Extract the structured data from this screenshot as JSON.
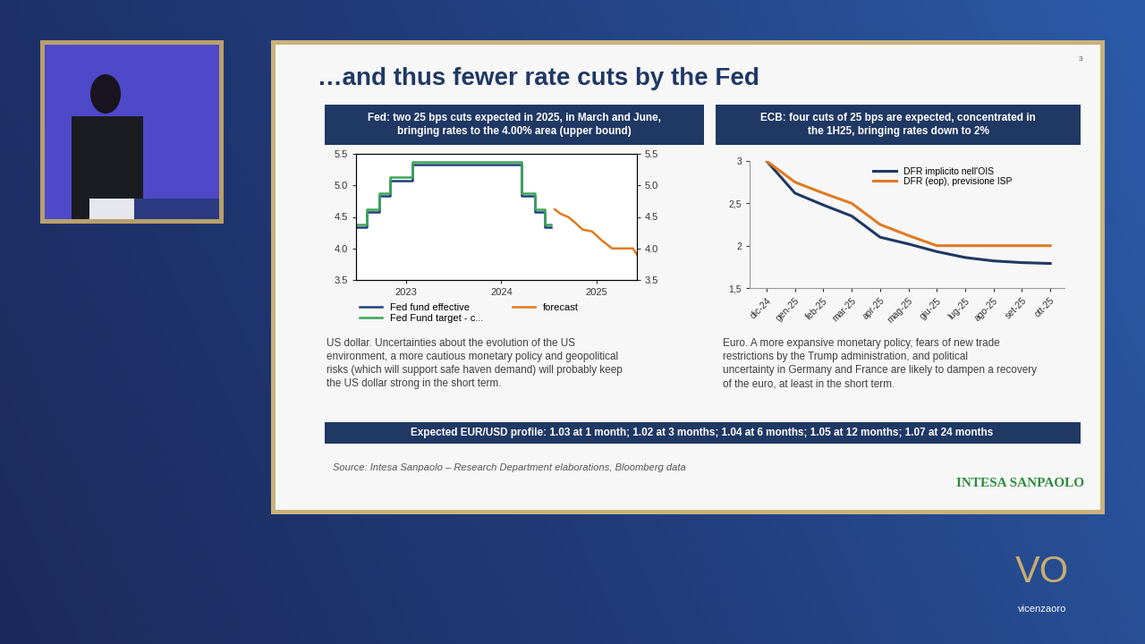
{
  "slide": {
    "title": "…and thus fewer rate cuts by the Fed",
    "page": "3",
    "left_header": "Fed: two 25 bps cuts expected in 2025, in March and June, bringing rates to the 4.00% area (upper bound)",
    "right_header": "ECB: four cuts of 25 bps are expected, concentrated in the 1H25, bringing rates down to 2%",
    "left_text": "US dollar. Uncertainties about the evolution of the US environment, a more cautious monetary policy and geopolitical risks (which will support safe haven demand) will probably keep the US dollar strong in the short term.",
    "right_text": "Euro. A more expansive monetary policy, fears of new trade restrictions by the Trump administration, and political uncertainty in Germany and France are likely to dampen a recovery of the euro, at least in the short term.",
    "footer_bar": "Expected EUR/USD profile: 1.03 at 1 month; 1.02 at 3 months; 1.04 at 6 months; 1.05 at 12 months; 1.07 at 24 months",
    "source": "Source: Intesa Sanpaolo – Research Department elaborations, Bloomberg data",
    "logo": "INTESA SANPAOLO",
    "event_logo": "VO",
    "event_name": "vicenzaoro"
  },
  "chart_data": [
    {
      "type": "line",
      "xlim": [
        2022.98,
        2025.92
      ],
      "xticks": [
        {
          "value": 2023.5,
          "label": "2023"
        },
        {
          "value": 2024.5,
          "label": "2024"
        },
        {
          "value": 2025.5,
          "label": "2025"
        }
      ],
      "ylim": [
        3.5,
        5.5
      ],
      "yticks": [
        3.5,
        {
          "value": 4,
          "label": "4.0"
        },
        4.5,
        {
          "value": 5,
          "label": "5.0"
        },
        5.5
      ],
      "y2lim": [
        3.5,
        5.5
      ],
      "y2ticks": [
        3.5,
        {
          "value": 4,
          "label": "4.0"
        },
        4.5,
        {
          "value": 5,
          "label": "5.0"
        },
        5.5
      ],
      "legend": "upper left",
      "grid": false,
      "series": [
        {
          "name": "Fed fund effective",
          "color": "#1f3f7a",
          "line_style": "steps",
          "x": [
            2022.98,
            2023.09,
            2023.22,
            2023.34,
            2023.57,
            2024.71,
            2024.85,
            2024.96,
            2025.02
          ],
          "values": [
            4.33,
            4.58,
            4.83,
            5.08,
            5.33,
            4.83,
            4.58,
            4.33,
            4.33
          ]
        },
        {
          "name": "Fed Fund target - c...",
          "color": "#3aa655",
          "line_style": "steps",
          "x": [
            2022.98,
            2023.09,
            2023.22,
            2023.34,
            2023.57,
            2024.71,
            2024.85,
            2024.96,
            2025.02
          ],
          "values": [
            4.375,
            4.625,
            4.875,
            5.125,
            5.375,
            4.875,
            4.625,
            4.375,
            4.375
          ]
        },
        {
          "name": "forecast",
          "color": "#e07b22",
          "line_style": "solid",
          "x": [
            2025.06,
            2025.12,
            2025.2,
            2025.28,
            2025.35,
            2025.45,
            2025.55,
            2025.66,
            2025.88,
            2025.92
          ],
          "values": [
            4.62,
            4.55,
            4.5,
            4.4,
            4.3,
            4.27,
            4.13,
            4.0,
            4.0,
            3.9
          ]
        }
      ]
    },
    {
      "type": "line",
      "categories": [
        "dic-24",
        "gen-25",
        "feb-25",
        "mar-25",
        "apr-25",
        "mag-25",
        "giu-25",
        "lug-25",
        "ago-25",
        "set-25",
        "ott-25"
      ],
      "ylim": [
        1.5,
        3
      ],
      "yticks": [
        {
          "value": 1.5,
          "label": "1,5"
        },
        2,
        {
          "value": 2.5,
          "label": "2,5"
        },
        3
      ],
      "legend": "upper right",
      "grid": false,
      "series": [
        {
          "name": "DFR implicito nell'OIS",
          "color": "#1f3864",
          "line_style": "solid",
          "values": [
            3,
            2.62,
            2.48,
            2.35,
            2.1,
            2.02,
            1.93,
            1.86,
            1.82,
            1.8,
            1.79
          ]
        },
        {
          "name": "DFR (eop), previsione ISP",
          "color": "#e07b22",
          "line_style": "solid",
          "values": [
            3,
            2.75,
            2.62,
            2.5,
            2.25,
            2.12,
            2.0,
            2.0,
            2.0,
            2.0,
            2.0
          ]
        }
      ]
    }
  ]
}
